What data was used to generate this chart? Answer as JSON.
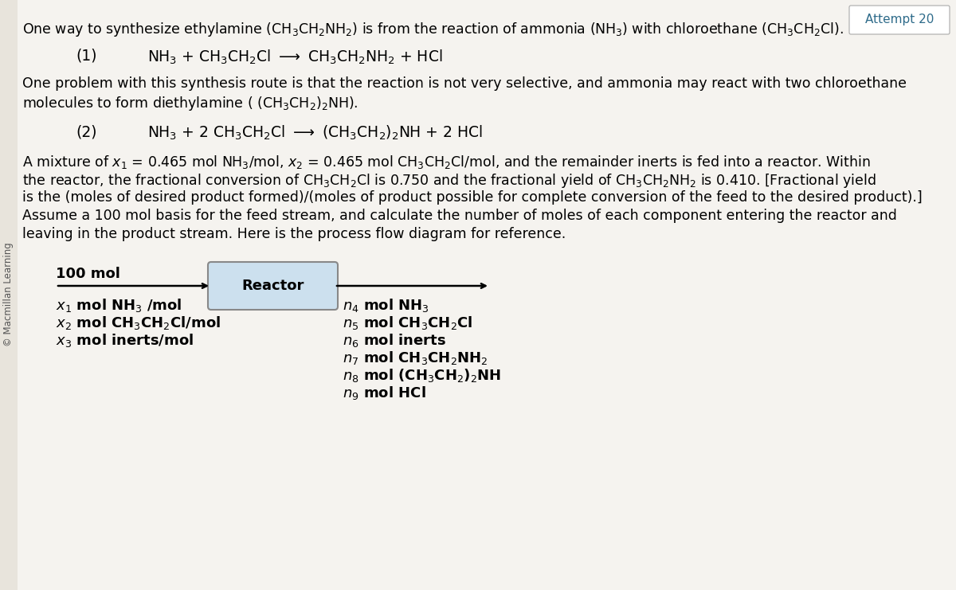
{
  "background_color": "#e8e4dc",
  "content_bg": "#f5f3ef",
  "attempt_text": "Attempt 20",
  "attempt_color": "#2e6b8a",
  "attempt_bg": "#f0eeea",
  "macmillan_text": "© Macmillan Learning",
  "title_line": "One way to synthesize ethylamine (CH$_3$CH$_2$NH$_2$) is from the reaction of ammonia (NH$_3$) with chloroethane (CH$_3$CH$_2$Cl).",
  "eq1_label": "(1)",
  "eq1_text": "NH$_3$ + CH$_3$CH$_2$Cl $\\longrightarrow$ CH$_3$CH$_2$NH$_2$ + HCl",
  "para1_line1": "One problem with this synthesis route is that the reaction is not very selective, and ammonia may react with two chloroethane",
  "para1_line2": "molecules to form diethylamine ( (CH$_3$CH$_2$)$_2$NH).",
  "eq2_label": "(2)",
  "eq2_text": "NH$_3$ + 2 CH$_3$CH$_2$Cl $\\longrightarrow$ (CH$_3$CH$_2$)$_2$NH + 2 HCl",
  "para2_line1": "A mixture of $x_1$ = 0.465 mol NH$_3$/mol, $x_2$ = 0.465 mol CH$_3$CH$_2$Cl/mol, and the remainder inerts is fed into a reactor. Within",
  "para2_line2": "the reactor, the fractional conversion of CH$_3$CH$_2$Cl is 0.750 and the fractional yield of CH$_3$CH$_2$NH$_2$ is 0.410. [Fractional yield",
  "para2_line3": "is the (moles of desired product formed)/(moles of product possible for complete conversion of the feed to the desired product).]",
  "para2_line4": "Assume a 100 mol basis for the feed stream, and calculate the number of moles of each component entering the reactor and",
  "para2_line5": "leaving in the product stream. Here is the process flow diagram for reference.",
  "feed_label": "100 mol",
  "feed_line1": "$x_1$ mol NH$_3$ /mol",
  "feed_line2": "$x_2$ mol CH$_3$CH$_2$Cl/mol",
  "feed_line3": "$x_3$ mol inerts/mol",
  "reactor_label": "Reactor",
  "prod_line1": "$n_4$ mol NH$_3$",
  "prod_line2": "$n_5$ mol CH$_3$CH$_2$Cl",
  "prod_line3": "$n_6$ mol inerts",
  "prod_line4": "$n_7$ mol CH$_3$CH$_2$NH$_2$",
  "prod_line5": "$n_8$ mol (CH$_3$CH$_2$)$_2$NH",
  "prod_line6": "$n_9$ mol HCl",
  "fs_body": 12.5,
  "fs_eq": 13.5,
  "fs_attempt": 11,
  "fs_diagram": 13
}
